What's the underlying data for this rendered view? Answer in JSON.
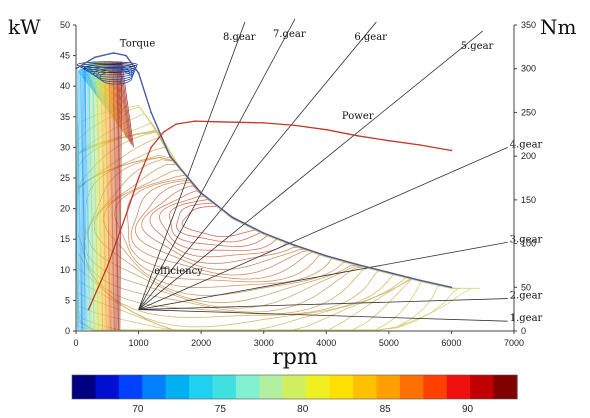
{
  "chart_data": {
    "type": "line",
    "title": "",
    "left_axis": {
      "unit": "kW",
      "range": [
        0,
        50
      ],
      "ticks": [
        0,
        5,
        10,
        15,
        20,
        25,
        30,
        35,
        40,
        45,
        50
      ]
    },
    "right_axis": {
      "unit": "Nm",
      "range": [
        0,
        350
      ],
      "ticks": [
        0,
        50,
        100,
        150,
        200,
        250,
        300,
        350
      ]
    },
    "x_axis": {
      "label": "rpm",
      "range": [
        0,
        7000
      ],
      "ticks": [
        0,
        1000,
        2000,
        3000,
        4000,
        5000,
        6000,
        7000
      ]
    },
    "torque_curve": {
      "name": "Torque",
      "color": "#4a5aa0",
      "points": [
        [
          0,
          300
        ],
        [
          300,
          313
        ],
        [
          600,
          318
        ],
        [
          800,
          315
        ],
        [
          1000,
          295
        ],
        [
          1200,
          250
        ],
        [
          1500,
          200
        ],
        [
          2000,
          158
        ],
        [
          2500,
          130
        ],
        [
          3000,
          112
        ],
        [
          3500,
          98
        ],
        [
          4000,
          86
        ],
        [
          4500,
          76
        ],
        [
          5000,
          67
        ],
        [
          5500,
          58
        ],
        [
          6000,
          50
        ]
      ]
    },
    "power_curve": {
      "name": "Power",
      "color": "#c0392b",
      "points": [
        [
          200,
          3.5
        ],
        [
          500,
          10.5
        ],
        [
          800,
          19
        ],
        [
          1000,
          25
        ],
        [
          1200,
          30
        ],
        [
          1400,
          32.5
        ],
        [
          1600,
          33.8
        ],
        [
          1900,
          34.3
        ],
        [
          2200,
          34.2
        ],
        [
          2600,
          34.1
        ],
        [
          3000,
          34.0
        ],
        [
          3500,
          33.6
        ],
        [
          4000,
          32.9
        ],
        [
          4500,
          31.9
        ],
        [
          5000,
          31.1
        ],
        [
          5500,
          30.4
        ],
        [
          6000,
          29.5
        ]
      ]
    },
    "gear_lines": [
      {
        "label": "1.gear",
        "end": [
          6900,
          1.6
        ]
      },
      {
        "label": "2.gear",
        "end": [
          6900,
          5.3
        ]
      },
      {
        "label": "3.gear",
        "end": [
          6900,
          14.5
        ]
      },
      {
        "label": "4.gear",
        "end": [
          6900,
          30
        ]
      },
      {
        "label": "5.gear",
        "end": [
          6500,
          49
        ]
      },
      {
        "label": "6.gear",
        "end": [
          4800,
          50.5
        ]
      },
      {
        "label": "7.gear",
        "end": [
          3500,
          51
        ]
      },
      {
        "label": "8.gear",
        "end": [
          2700,
          50.5
        ]
      }
    ],
    "gear_origin": [
      1000,
      3.5
    ],
    "annotations": [
      {
        "text": "Torque",
        "x": 700,
        "y": 46.5
      },
      {
        "text": "Power",
        "x": 4250,
        "y": 34.6
      },
      {
        "text": "efficiency",
        "x": 1250,
        "y": 9.3
      }
    ],
    "colorbar": {
      "ticks": [
        70,
        75,
        80,
        85,
        90
      ],
      "range": [
        66,
        93
      ],
      "colors": [
        "#000080",
        "#0010d0",
        "#0040ff",
        "#0080ff",
        "#00b0f0",
        "#20d0f0",
        "#40e0e0",
        "#80f0d0",
        "#b0f0a0",
        "#d0f060",
        "#f0f020",
        "#ffe000",
        "#ffc000",
        "#ffa000",
        "#ff7000",
        "#ff4000",
        "#f01010",
        "#c00000",
        "#800000"
      ]
    }
  }
}
